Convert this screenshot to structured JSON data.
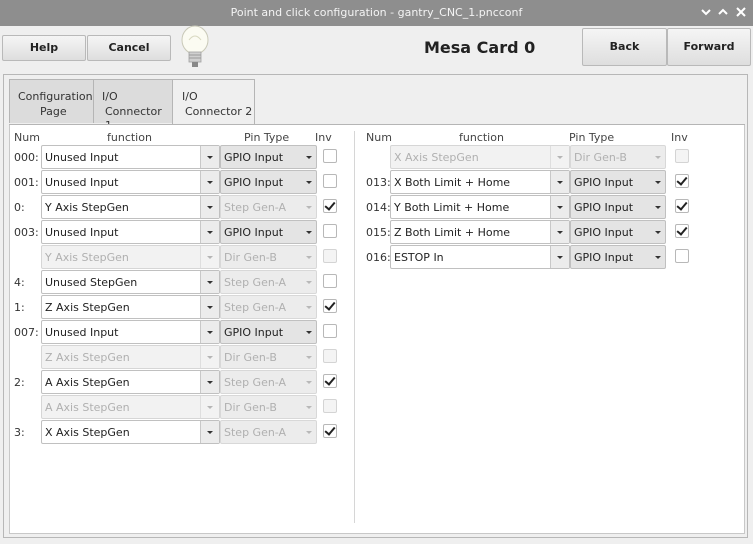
{
  "window": {
    "title": "Point and click configuration - gantry_CNC_1.pncconf"
  },
  "toolbar": {
    "help": "Help",
    "cancel": "Cancel",
    "card_title": "Mesa Card 0",
    "back": "Back",
    "forward": "Forward"
  },
  "tabs": [
    {
      "line1": "Configuration",
      "line2": "Page"
    },
    {
      "line1": "I/O",
      "line2": "Connector 1"
    },
    {
      "line1": "I/O",
      "line2": "Connector 2"
    }
  ],
  "headers": {
    "num": "Num",
    "function": "function",
    "pin_type": "Pin Type",
    "inv": "Inv"
  },
  "left_rows": [
    {
      "num": "000:",
      "func": "Unused Input",
      "ptype": "GPIO Input",
      "inv": false,
      "enabled": true
    },
    {
      "num": "001:",
      "func": "Unused Input",
      "ptype": "GPIO Input",
      "inv": false,
      "enabled": true
    },
    {
      "num": "0:",
      "func": "Y Axis StepGen",
      "ptype": "Step Gen-A",
      "inv": true,
      "enabled": true,
      "ptype_dis": true
    },
    {
      "num": "003:",
      "func": "Unused Input",
      "ptype": "GPIO Input",
      "inv": false,
      "enabled": true
    },
    {
      "num": "",
      "func": "Y Axis StepGen",
      "ptype": "Dir Gen-B",
      "inv": false,
      "enabled": false
    },
    {
      "num": "4:",
      "func": "Unused StepGen",
      "ptype": "Step Gen-A",
      "inv": false,
      "enabled": true,
      "ptype_dis": true
    },
    {
      "num": "1:",
      "func": "Z Axis StepGen",
      "ptype": "Step Gen-A",
      "inv": true,
      "enabled": true,
      "ptype_dis": true
    },
    {
      "num": "007:",
      "func": "Unused Input",
      "ptype": "GPIO Input",
      "inv": false,
      "enabled": true
    },
    {
      "num": "",
      "func": "Z Axis StepGen",
      "ptype": "Dir Gen-B",
      "inv": false,
      "enabled": false
    },
    {
      "num": "2:",
      "func": "A Axis StepGen",
      "ptype": "Step Gen-A",
      "inv": true,
      "enabled": true,
      "ptype_dis": true
    },
    {
      "num": "",
      "func": "A Axis StepGen",
      "ptype": "Dir Gen-B",
      "inv": false,
      "enabled": false
    },
    {
      "num": "3:",
      "func": "X Axis StepGen",
      "ptype": "Step Gen-A",
      "inv": true,
      "enabled": true,
      "ptype_dis": true
    }
  ],
  "right_rows": [
    {
      "num": "",
      "func": "X Axis StepGen",
      "ptype": "Dir Gen-B",
      "inv": false,
      "enabled": false
    },
    {
      "num": "013:",
      "func": "X Both Limit + Home",
      "ptype": "GPIO Input",
      "inv": true,
      "enabled": true
    },
    {
      "num": "014:",
      "func": "Y Both Limit + Home",
      "ptype": "GPIO Input",
      "inv": true,
      "enabled": true
    },
    {
      "num": "015:",
      "func": "Z Both Limit + Home",
      "ptype": "GPIO Input",
      "inv": true,
      "enabled": true
    },
    {
      "num": "016:",
      "func": "ESTOP In",
      "ptype": "GPIO Input",
      "inv": false,
      "enabled": true
    }
  ]
}
